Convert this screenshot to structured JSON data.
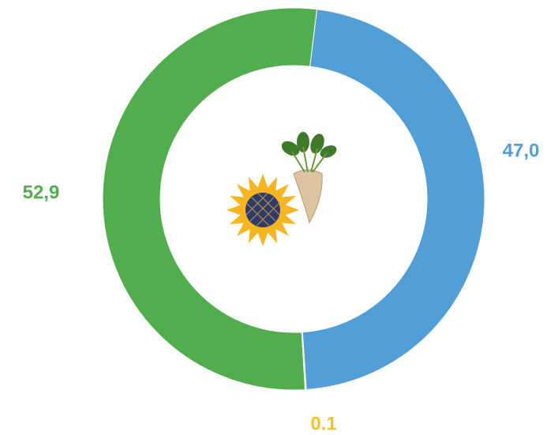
{
  "chart_data": {
    "type": "donut",
    "series": [
      {
        "name": null,
        "values": [
          47.0,
          0.1,
          52.9
        ],
        "value_labels": [
          "47,0",
          "0.1",
          "52,9"
        ],
        "colors": [
          "#529fd8",
          "#f7bf2b",
          "#52ad4f"
        ]
      }
    ]
  }
}
